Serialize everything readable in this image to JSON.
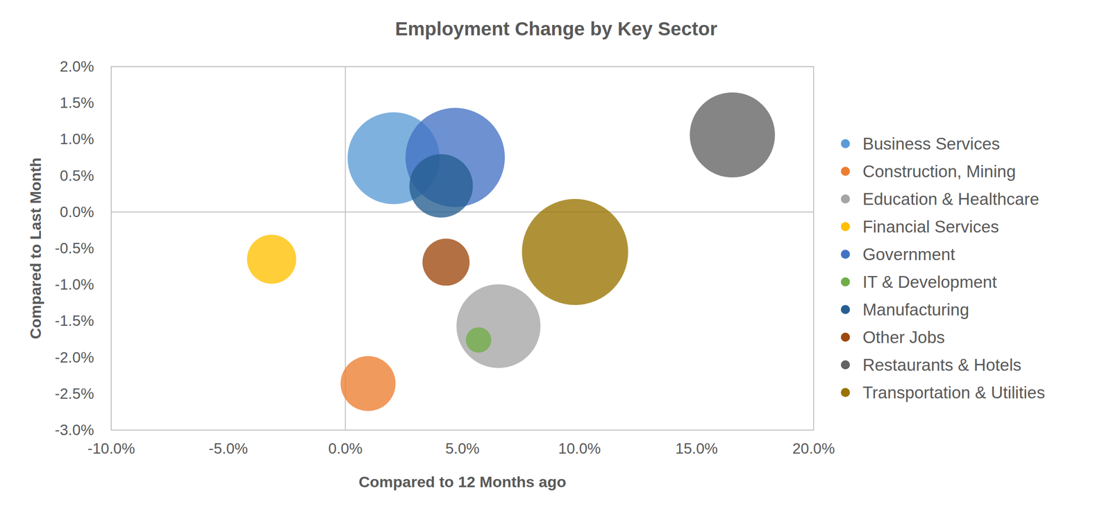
{
  "chart_data": {
    "type": "bubble",
    "title": "Employment Change by Key Sector",
    "x_label": "Compared to 12 Months ago",
    "y_label": "Compared to Last Month",
    "xlim": [
      -10,
      20
    ],
    "ylim": [
      -3,
      2
    ],
    "xticks": [
      {
        "value": -10,
        "label": "-10.0%"
      },
      {
        "value": -5,
        "label": "-5.0%"
      },
      {
        "value": 0,
        "label": "0.0%"
      },
      {
        "value": 5,
        "label": "5.0%"
      },
      {
        "value": 10,
        "label": "10.0%"
      },
      {
        "value": 15,
        "label": "15.0%"
      },
      {
        "value": 20,
        "label": "20.0%"
      }
    ],
    "yticks": [
      {
        "value": 2,
        "label": "2.0%"
      },
      {
        "value": 1.5,
        "label": "1.5%"
      },
      {
        "value": 1,
        "label": "1.0%"
      },
      {
        "value": 0.5,
        "label": "0.5%"
      },
      {
        "value": 0,
        "label": "0.0%"
      },
      {
        "value": -0.5,
        "label": "-0.5%"
      },
      {
        "value": -1,
        "label": "-1.0%"
      },
      {
        "value": -1.5,
        "label": "-1.5%"
      },
      {
        "value": -2,
        "label": "-2.0%"
      },
      {
        "value": -2.5,
        "label": "-2.5%"
      },
      {
        "value": -3,
        "label": "-3.0%"
      }
    ],
    "grid": false,
    "legend": "right",
    "series": [
      {
        "name": "Business Services",
        "color": "#5b9bd5",
        "x": [
          2.06
        ],
        "values": [
          0.74
        ],
        "size": [
          42
        ]
      },
      {
        "name": "Construction, Mining",
        "color": "#ed7d31",
        "x": [
          0.97
        ],
        "values": [
          -2.36
        ],
        "size": [
          15
        ]
      },
      {
        "name": "Education & Healthcare",
        "color": "#a5a5a5",
        "x": [
          6.54
        ],
        "values": [
          -1.57
        ],
        "size": [
          35
        ]
      },
      {
        "name": "Financial Services",
        "color": "#ffc000",
        "x": [
          -3.15
        ],
        "values": [
          -0.65
        ],
        "size": [
          12
        ]
      },
      {
        "name": "Government",
        "color": "#4472c4",
        "x": [
          4.69
        ],
        "values": [
          0.75
        ],
        "size": [
          49
        ]
      },
      {
        "name": "IT & Development",
        "color": "#70ad47",
        "x": [
          5.69
        ],
        "values": [
          -1.76
        ],
        "size": [
          3.2
        ]
      },
      {
        "name": "Manufacturing",
        "color": "#255e91",
        "x": [
          4.09
        ],
        "values": [
          0.36
        ],
        "size": [
          20
        ]
      },
      {
        "name": "Other Jobs",
        "color": "#9e480e",
        "x": [
          4.3
        ],
        "values": [
          -0.69
        ],
        "size": [
          11
        ]
      },
      {
        "name": "Restaurants & Hotels",
        "color": "#636363",
        "x": [
          16.53
        ],
        "values": [
          1.06
        ],
        "size": [
          36
        ]
      },
      {
        "name": "Transportation & Utilities",
        "color": "#997300",
        "x": [
          9.81
        ],
        "values": [
          -0.55
        ],
        "size": [
          56
        ]
      }
    ]
  }
}
